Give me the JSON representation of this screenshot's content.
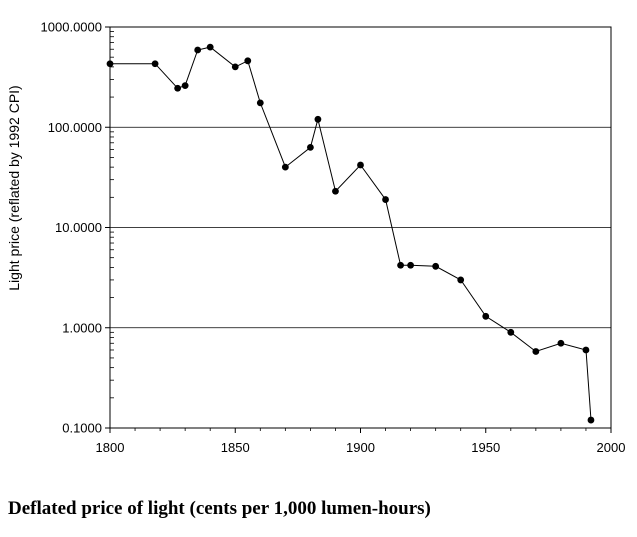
{
  "chart_data": {
    "type": "line",
    "title": "",
    "xlabel": "",
    "ylabel": "Light price (reflated by 1992 CPI)",
    "caption": "Deflated price of light (cents per 1,000 lumen-hours)",
    "xlim": [
      1800,
      2000
    ],
    "ylim": [
      0.1,
      1000
    ],
    "yscale": "log",
    "grid": "horizontal",
    "xticks": [
      "1800",
      "1850",
      "1900",
      "1950",
      "2000"
    ],
    "yticks": [
      "0.1000",
      "1.0000",
      "10.0000",
      "100.0000",
      "1000.0000"
    ],
    "series": [
      {
        "x": [
          1800,
          1818,
          1827,
          1830,
          1835,
          1840,
          1850,
          1855,
          1860,
          1870,
          1880,
          1883,
          1890,
          1900,
          1910,
          1916,
          1920,
          1930,
          1940,
          1950,
          1960,
          1970,
          1980,
          1990,
          1992
        ],
        "y": [
          430,
          430,
          245,
          260,
          590,
          630,
          400,
          460,
          175,
          40,
          63,
          120,
          23,
          42,
          19,
          4.2,
          4.2,
          4.1,
          3.0,
          1.3,
          0.9,
          0.58,
          0.7,
          0.6,
          0.12
        ]
      }
    ]
  }
}
